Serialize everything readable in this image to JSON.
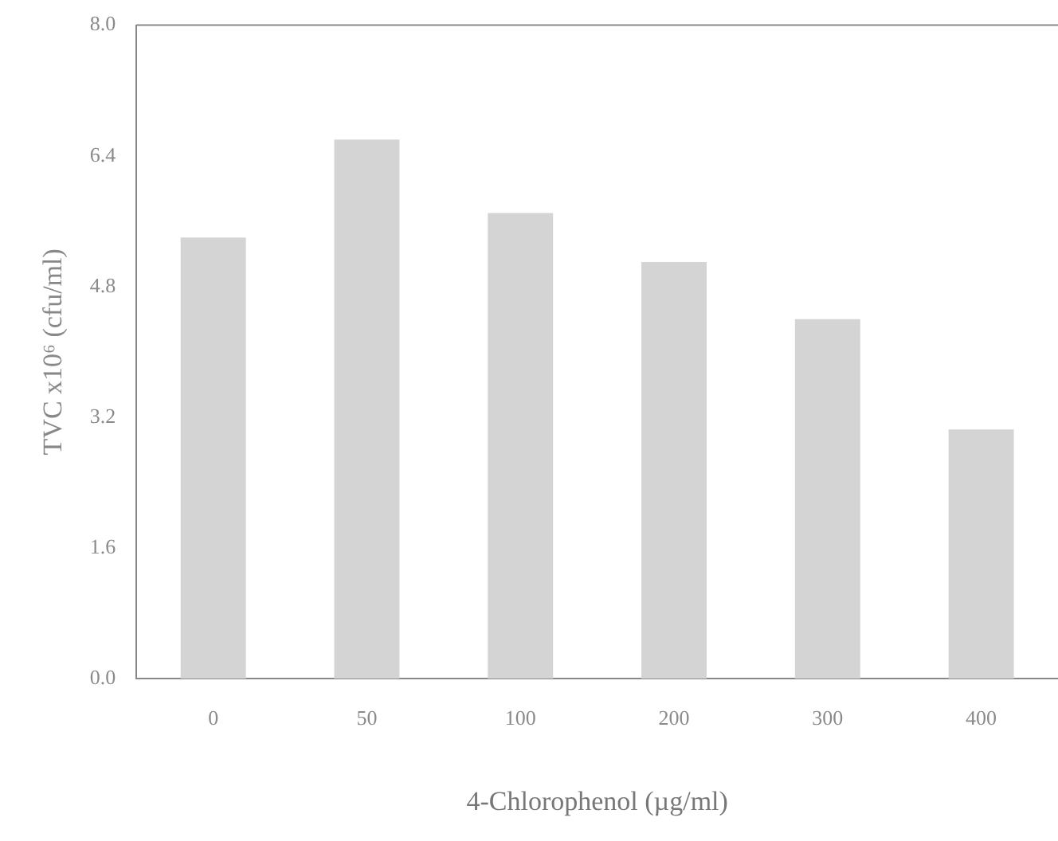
{
  "chart_data": {
    "type": "bar",
    "xlabel": "4-Chlorophenol (µg/ml)",
    "ylabel": "TVC x10⁶ (cfu/ml)",
    "categories": [
      "0",
      "50",
      "100",
      "200",
      "300",
      "400"
    ],
    "series": [
      {
        "color": "#d4d4d4",
        "values": [
          5.4,
          6.6,
          5.7,
          5.1,
          4.4,
          3.05
        ]
      }
    ],
    "ylim": [
      0,
      8
    ],
    "yticks": [
      {
        "value": 0,
        "label": "0.0"
      },
      {
        "value": 1.6,
        "label": "1.6"
      },
      {
        "value": 3.2,
        "label": "3.2"
      },
      {
        "value": 4.8,
        "label": "4.8"
      },
      {
        "value": 6.4,
        "label": "6.4"
      },
      {
        "value": 8,
        "label": "8.0"
      }
    ],
    "grid": false,
    "legend": false
  }
}
